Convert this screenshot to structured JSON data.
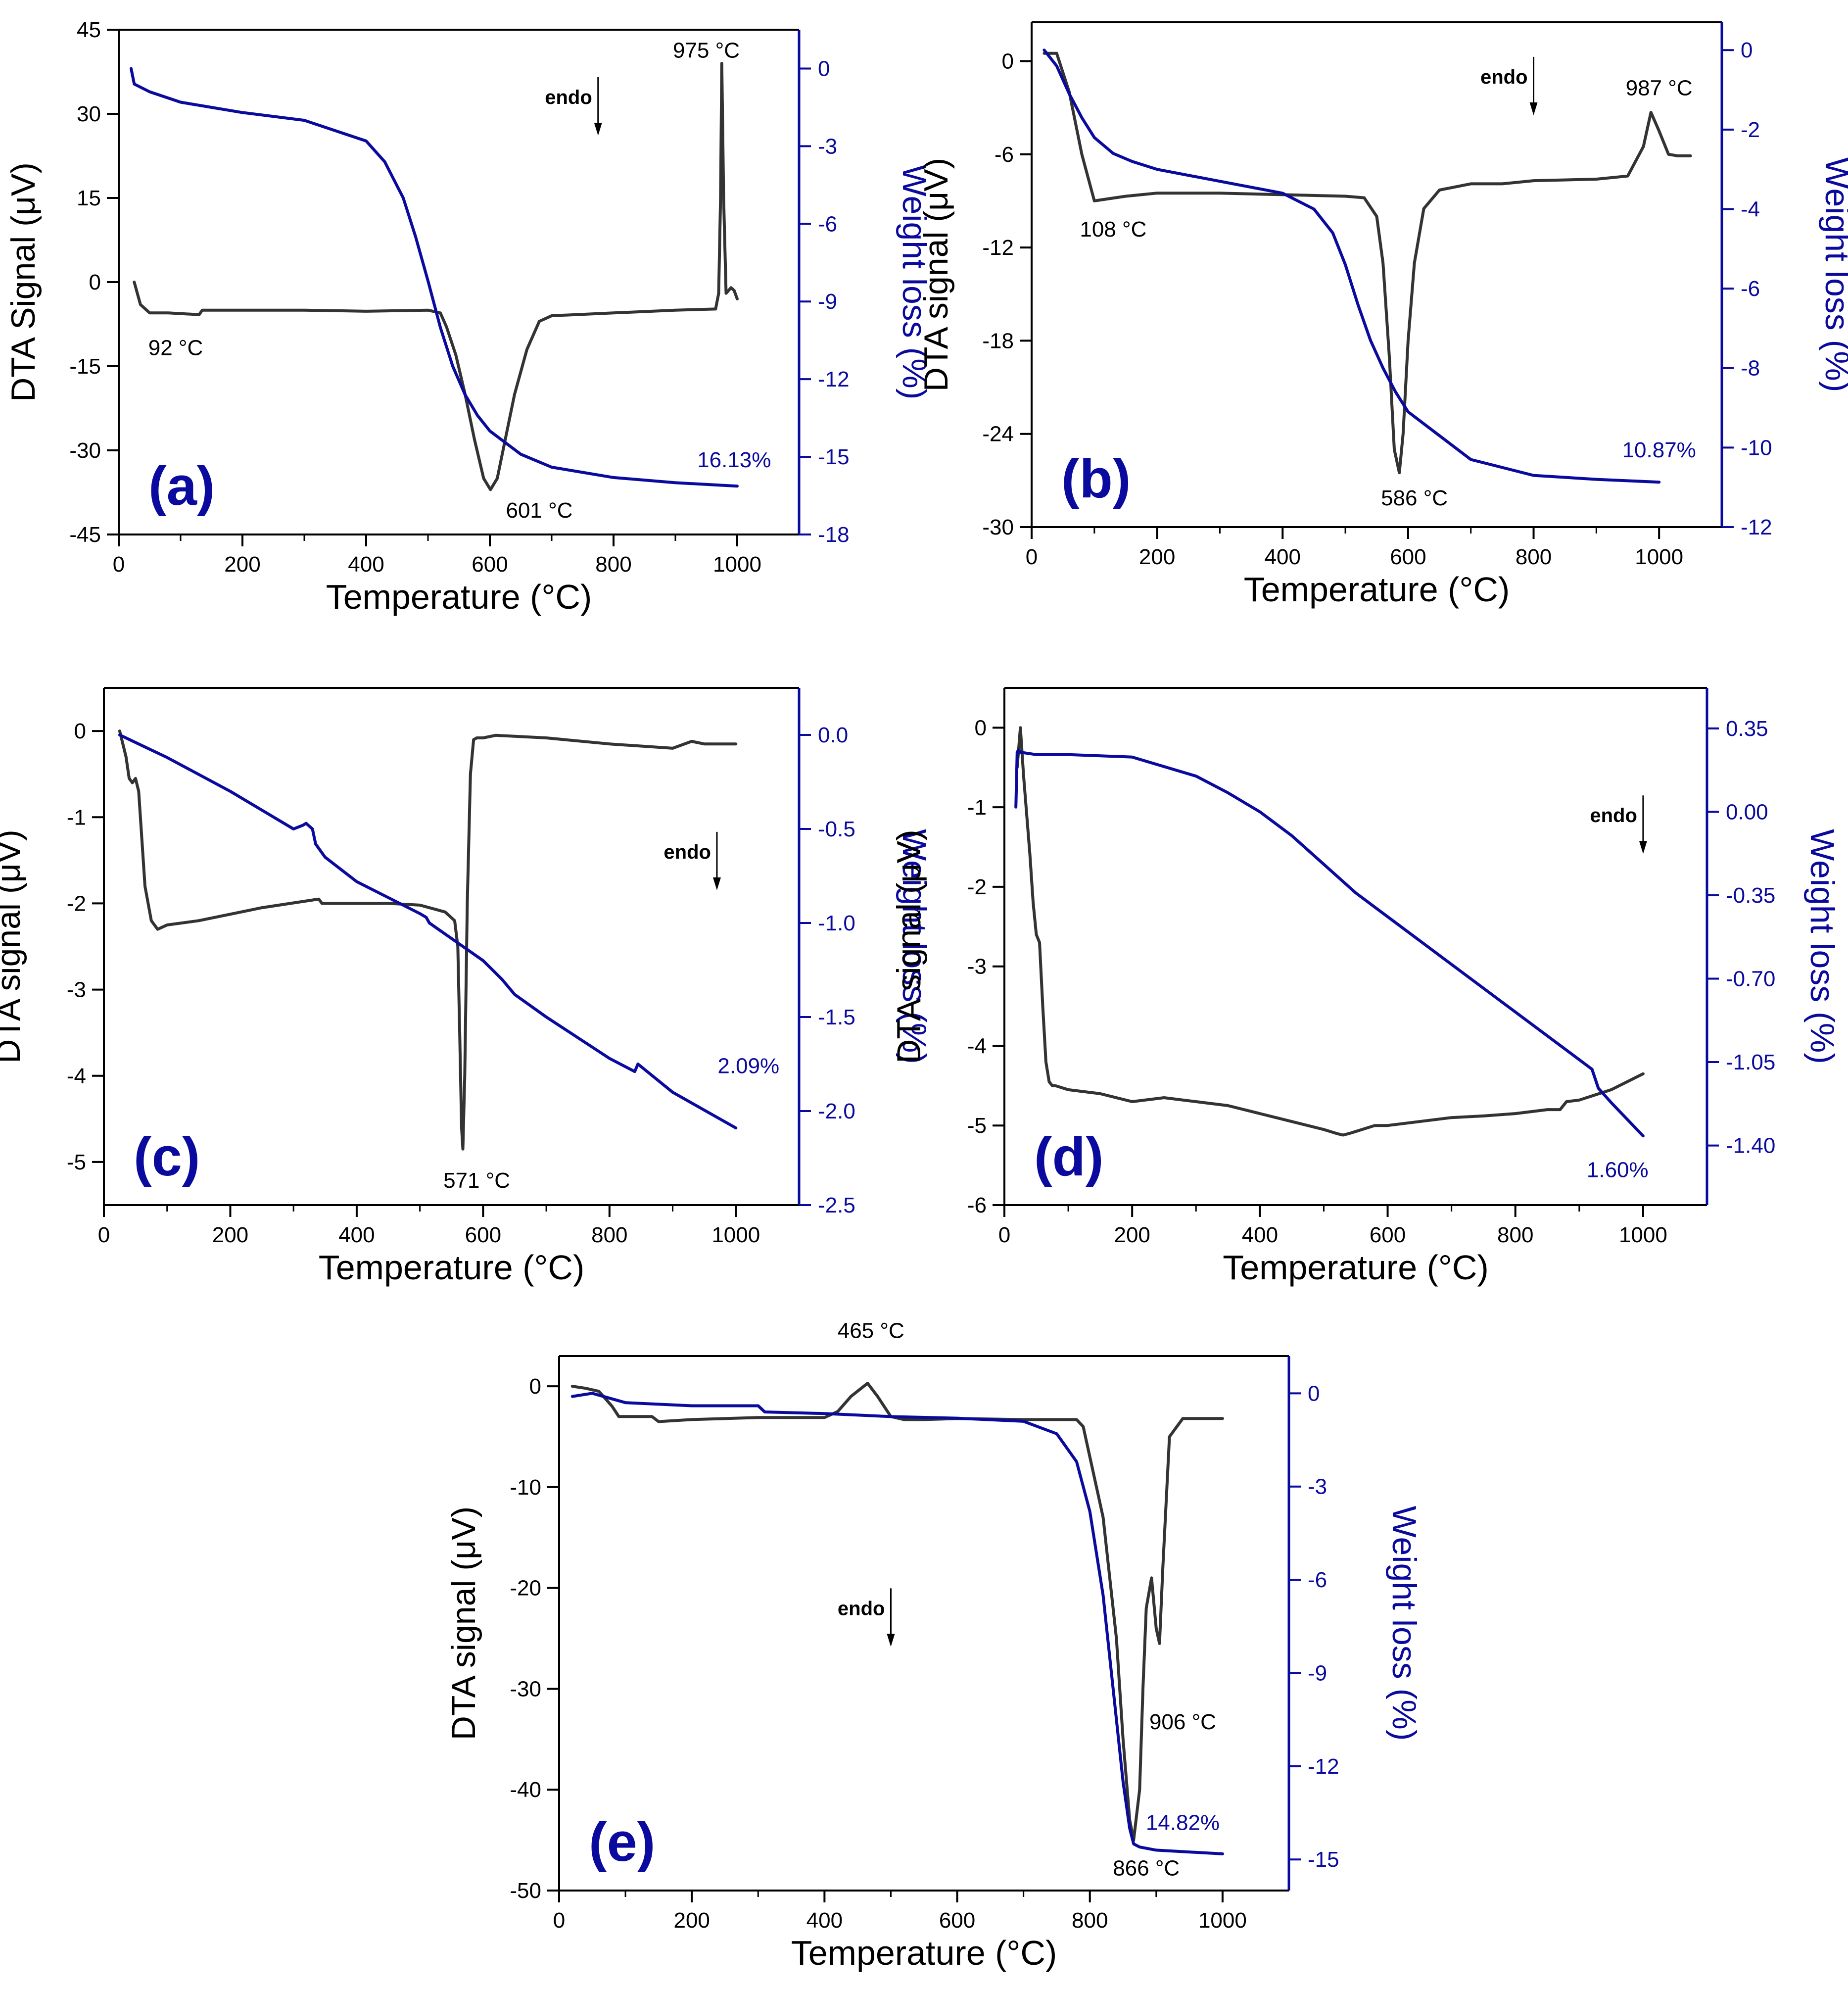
{
  "figure": {
    "colors": {
      "dta": "#333333",
      "tga": "#0a0a9e",
      "axis_right": "#0a0a9e",
      "text": "#000000"
    }
  },
  "chart_data": [
    {
      "panel_label": "(a)",
      "type": "line",
      "xlabel": "Temperature (°C)",
      "ylabel": "DTA Signal (μV)",
      "y2label": "Weight loss (%)",
      "xlim": [
        0,
        1100
      ],
      "xticks": [
        "0",
        "200",
        "400",
        "600",
        "800",
        "1000"
      ],
      "ylim": [
        -45,
        45
      ],
      "yticks": [
        "-45",
        "-30",
        "-15",
        "0",
        "15",
        "30",
        "45"
      ],
      "y2lim": [
        -18,
        1.5
      ],
      "y2ticks": [
        "-18",
        "-15",
        "-12",
        "-9",
        "-6",
        "-3",
        "0"
      ],
      "endo_label": "endo",
      "endo_at": {
        "x": 775,
        "y": 33
      },
      "series": [
        {
          "axis": "left",
          "x": [
            25,
            35,
            50,
            80,
            130,
            135,
            200,
            300,
            400,
            500,
            520,
            530,
            545,
            560,
            575,
            590,
            601,
            612,
            625,
            640,
            660,
            680,
            700,
            800,
            900,
            965,
            970,
            973,
            975,
            978,
            982,
            990,
            995,
            1000
          ],
          "y": [
            0,
            -4,
            -5.5,
            -5.5,
            -5.8,
            -5,
            -5,
            -5,
            -5.2,
            -5,
            -5.5,
            -8,
            -13,
            -20,
            -28,
            -35,
            -37,
            -35,
            -28,
            -20,
            -12,
            -7,
            -6,
            -5.5,
            -5,
            -4.8,
            -2,
            15,
            39,
            15,
            -2,
            -1,
            -1.5,
            -3
          ]
        },
        {
          "axis": "right",
          "x": [
            20,
            25,
            50,
            100,
            200,
            300,
            400,
            430,
            460,
            480,
            500,
            520,
            540,
            560,
            580,
            600,
            650,
            700,
            800,
            900,
            1000
          ],
          "y": [
            0,
            -0.6,
            -0.9,
            -1.3,
            -1.7,
            -2,
            -2.8,
            -3.6,
            -5,
            -6.5,
            -8.2,
            -10,
            -11.5,
            -12.6,
            -13.4,
            -14,
            -14.9,
            -15.4,
            -15.8,
            -16,
            -16.13
          ]
        }
      ],
      "annotations": [
        {
          "text": "975 °C",
          "x": 950,
          "y": 40
        },
        {
          "text": "92 °C",
          "x": 92,
          "y": -13
        },
        {
          "text": "601 °C",
          "x": 680,
          "y": -42
        },
        {
          "text": "16.13%",
          "x": 995,
          "y": -33
        }
      ]
    },
    {
      "panel_label": "(b)",
      "type": "line",
      "xlabel": "Temperature (°C)",
      "ylabel": "DTA signal (μV)",
      "y2label": "Weight loss (%)",
      "xlim": [
        0,
        1100
      ],
      "xticks": [
        "0",
        "200",
        "400",
        "600",
        "800",
        "1000"
      ],
      "ylim": [
        -30,
        2.5
      ],
      "yticks": [
        "-30",
        "-24",
        "-18",
        "-12",
        "-6",
        "0"
      ],
      "y2lim": [
        -12,
        0.7
      ],
      "y2ticks": [
        "-12",
        "-10",
        "-8",
        "-6",
        "-4",
        "-2",
        "0"
      ],
      "endo_label": "endo",
      "endo_at": {
        "x": 800,
        "y": -1
      },
      "series": [
        {
          "axis": "left",
          "x": [
            20,
            30,
            40,
            60,
            80,
            100,
            150,
            200,
            300,
            400,
            500,
            530,
            550,
            560,
            570,
            578,
            586,
            592,
            600,
            610,
            625,
            650,
            700,
            750,
            800,
            900,
            950,
            975,
            987,
            1000,
            1015,
            1030,
            1050
          ],
          "y": [
            0.5,
            0.5,
            0.5,
            -2,
            -6,
            -9,
            -8.7,
            -8.5,
            -8.5,
            -8.6,
            -8.7,
            -8.8,
            -10,
            -13,
            -19,
            -25,
            -26.5,
            -24,
            -18,
            -13,
            -9.5,
            -8.3,
            -7.9,
            -7.9,
            -7.7,
            -7.6,
            -7.4,
            -5.5,
            -3.3,
            -4.5,
            -6,
            -6.1,
            -6.1
          ]
        },
        {
          "axis": "right",
          "x": [
            20,
            40,
            60,
            80,
            100,
            130,
            160,
            200,
            300,
            400,
            450,
            480,
            500,
            520,
            540,
            560,
            580,
            600,
            650,
            700,
            800,
            900,
            1000
          ],
          "y": [
            0,
            -0.4,
            -1.1,
            -1.7,
            -2.2,
            -2.6,
            -2.8,
            -3,
            -3.3,
            -3.6,
            -4,
            -4.6,
            -5.4,
            -6.4,
            -7.3,
            -8,
            -8.6,
            -9.1,
            -9.7,
            -10.3,
            -10.7,
            -10.8,
            -10.87
          ]
        }
      ],
      "annotations": [
        {
          "text": "987 °C",
          "x": 1000,
          "y": -2.2
        },
        {
          "text": "108 °C",
          "x": 130,
          "y": -11.3
        },
        {
          "text": "586 °C",
          "x": 610,
          "y": -28.6
        },
        {
          "text": "10.87%",
          "x": 1000,
          "y": -25.5
        }
      ]
    },
    {
      "panel_label": "(c)",
      "type": "line",
      "xlabel": "Temperature (°C)",
      "ylabel": "DTA signal (μV)",
      "y2label": "Weight loss (%)",
      "xlim": [
        0,
        1100
      ],
      "xticks": [
        "0",
        "200",
        "400",
        "600",
        "800",
        "1000"
      ],
      "ylim": [
        -5.5,
        0.5
      ],
      "yticks": [
        "-5",
        "-4",
        "-3",
        "-2",
        "-1",
        "0"
      ],
      "y2lim": [
        -2.5,
        0.25
      ],
      "y2ticks": [
        "-2.5",
        "-2.0",
        "-1.5",
        "-1.0",
        "-0.5",
        "0.0"
      ],
      "endo_label": "endo",
      "endo_at": {
        "x": 970,
        "y": -1.4
      },
      "series": [
        {
          "axis": "left",
          "x": [
            25,
            35,
            40,
            45,
            50,
            55,
            65,
            75,
            85,
            100,
            150,
            250,
            340,
            345,
            400,
            450,
            500,
            540,
            555,
            560,
            563,
            566,
            568,
            571,
            575,
            580,
            585,
            590,
            600,
            620,
            700,
            800,
            900,
            930,
            950,
            1000
          ],
          "y": [
            0,
            -0.3,
            -0.55,
            -0.6,
            -0.55,
            -0.7,
            -1.8,
            -2.2,
            -2.3,
            -2.25,
            -2.2,
            -2.05,
            -1.95,
            -2,
            -2,
            -2,
            -2.02,
            -2.1,
            -2.2,
            -2.5,
            -3.5,
            -4.6,
            -4.85,
            -4,
            -2,
            -0.5,
            -0.1,
            -0.08,
            -0.08,
            -0.05,
            -0.08,
            -0.15,
            -0.2,
            -0.12,
            -0.15,
            -0.15
          ]
        },
        {
          "axis": "right",
          "x": [
            25,
            100,
            200,
            300,
            315,
            320,
            330,
            335,
            350,
            400,
            500,
            510,
            515,
            600,
            630,
            650,
            700,
            800,
            840,
            845,
            900,
            1000
          ],
          "y": [
            0,
            -0.12,
            -0.3,
            -0.5,
            -0.48,
            -0.47,
            -0.5,
            -0.58,
            -0.65,
            -0.78,
            -0.95,
            -0.97,
            -1,
            -1.2,
            -1.3,
            -1.38,
            -1.5,
            -1.72,
            -1.79,
            -1.75,
            -1.9,
            -2.09
          ]
        }
      ],
      "annotations": [
        {
          "text": "571 °C",
          "x": 590,
          "y": -5.3
        },
        {
          "text": "2.09%",
          "x": 1020,
          "y": -3.97
        }
      ]
    },
    {
      "panel_label": "(d)",
      "type": "line",
      "xlabel": "Temperature (°C)",
      "ylabel": "DTA signal (μV)",
      "y2label": "Weight loss (%)",
      "xlim": [
        0,
        1100
      ],
      "xticks": [
        "0",
        "200",
        "400",
        "600",
        "800",
        "1000"
      ],
      "ylim": [
        -6,
        0.5
      ],
      "yticks": [
        "-6",
        "-5",
        "-4",
        "-3",
        "-2",
        "-1",
        "0"
      ],
      "y2lim": [
        -1.65,
        0.52
      ],
      "y2ticks": [
        "-1.40",
        "-1.05",
        "-0.70",
        "-0.35",
        "0.00",
        "0.35"
      ],
      "endo_label": "endo",
      "endo_at": {
        "x": 1000,
        "y": -1.1
      },
      "series": [
        {
          "axis": "left",
          "x": [
            20,
            25,
            30,
            40,
            45,
            50,
            55,
            60,
            65,
            70,
            75,
            80,
            100,
            150,
            200,
            250,
            300,
            350,
            400,
            450,
            500,
            520,
            530,
            540,
            560,
            580,
            600,
            650,
            700,
            750,
            800,
            850,
            870,
            880,
            900,
            950,
            1000
          ],
          "y": [
            -0.5,
            0,
            -0.6,
            -1.6,
            -2.2,
            -2.6,
            -2.7,
            -3.5,
            -4.2,
            -4.45,
            -4.5,
            -4.5,
            -4.55,
            -4.6,
            -4.7,
            -4.65,
            -4.7,
            -4.75,
            -4.85,
            -4.95,
            -5.05,
            -5.1,
            -5.12,
            -5.1,
            -5.05,
            -5,
            -5,
            -4.95,
            -4.9,
            -4.88,
            -4.85,
            -4.8,
            -4.8,
            -4.7,
            -4.68,
            -4.55,
            -4.35
          ]
        },
        {
          "axis": "right",
          "x": [
            18,
            20,
            22,
            25,
            50,
            100,
            200,
            300,
            350,
            400,
            450,
            500,
            550,
            600,
            700,
            800,
            900,
            920,
            930,
            950,
            1000
          ],
          "y": [
            0.02,
            0.25,
            0.26,
            0.25,
            0.24,
            0.24,
            0.23,
            0.15,
            0.08,
            0,
            -0.1,
            -0.22,
            -0.34,
            -0.44,
            -0.64,
            -0.84,
            -1.04,
            -1.08,
            -1.16,
            -1.22,
            -1.36
          ]
        }
      ],
      "annotations": [
        {
          "text": "1.60%",
          "x": 960,
          "y": -5.65
        }
      ]
    },
    {
      "panel_label": "(e)",
      "type": "line",
      "xlabel": "Temperature (°C)",
      "ylabel": "DTA signal (μV)",
      "y2label": "Weight loss (%)",
      "xlim": [
        0,
        1100
      ],
      "xticks": [
        "0",
        "200",
        "400",
        "600",
        "800",
        "1000"
      ],
      "ylim": [
        -50,
        3
      ],
      "yticks": [
        "-50",
        "-40",
        "-30",
        "-20",
        "-10",
        "0"
      ],
      "y2lim": [
        -16,
        1.2
      ],
      "y2ticks": [
        "-15",
        "-12",
        "-9",
        "-6",
        "-3",
        "0"
      ],
      "endo_label": "endo",
      "endo_at": {
        "x": 500,
        "y": -22
      },
      "series": [
        {
          "axis": "left",
          "x": [
            20,
            40,
            60,
            80,
            90,
            140,
            150,
            200,
            300,
            400,
            420,
            440,
            465,
            480,
            500,
            520,
            550,
            600,
            700,
            780,
            790,
            800,
            810,
            820,
            840,
            850,
            860,
            866,
            875,
            880,
            885,
            893,
            900,
            905,
            910,
            920,
            940,
            1000
          ],
          "y": [
            0,
            -0.2,
            -0.5,
            -2,
            -3,
            -3,
            -3.5,
            -3.3,
            -3.1,
            -3.1,
            -2.5,
            -1,
            0.3,
            -1,
            -3,
            -3.3,
            -3.3,
            -3.2,
            -3.3,
            -3.3,
            -4,
            -7,
            -10,
            -13,
            -25,
            -35,
            -43,
            -45,
            -40,
            -30,
            -22,
            -19,
            -24,
            -25.5,
            -18,
            -5,
            -3.2,
            -3.2
          ]
        },
        {
          "axis": "right",
          "x": [
            20,
            50,
            100,
            200,
            300,
            310,
            400,
            500,
            600,
            700,
            750,
            780,
            800,
            820,
            835,
            850,
            860,
            866,
            875,
            900,
            1000
          ],
          "y": [
            -0.1,
            0,
            -0.3,
            -0.4,
            -0.4,
            -0.6,
            -0.65,
            -0.75,
            -0.8,
            -0.9,
            -1.3,
            -2.2,
            -3.8,
            -6.5,
            -9.5,
            -12.5,
            -14,
            -14.5,
            -14.6,
            -14.7,
            -14.82
          ]
        }
      ],
      "annotations": [
        {
          "text": "465 °C",
          "x": 470,
          "y": 4.8
        },
        {
          "text": "906 °C",
          "x": 940,
          "y": -34
        },
        {
          "text": "866 °C",
          "x": 885,
          "y": -48.5
        },
        {
          "text": "14.82%",
          "x": 940,
          "y": -44
        }
      ]
    }
  ]
}
